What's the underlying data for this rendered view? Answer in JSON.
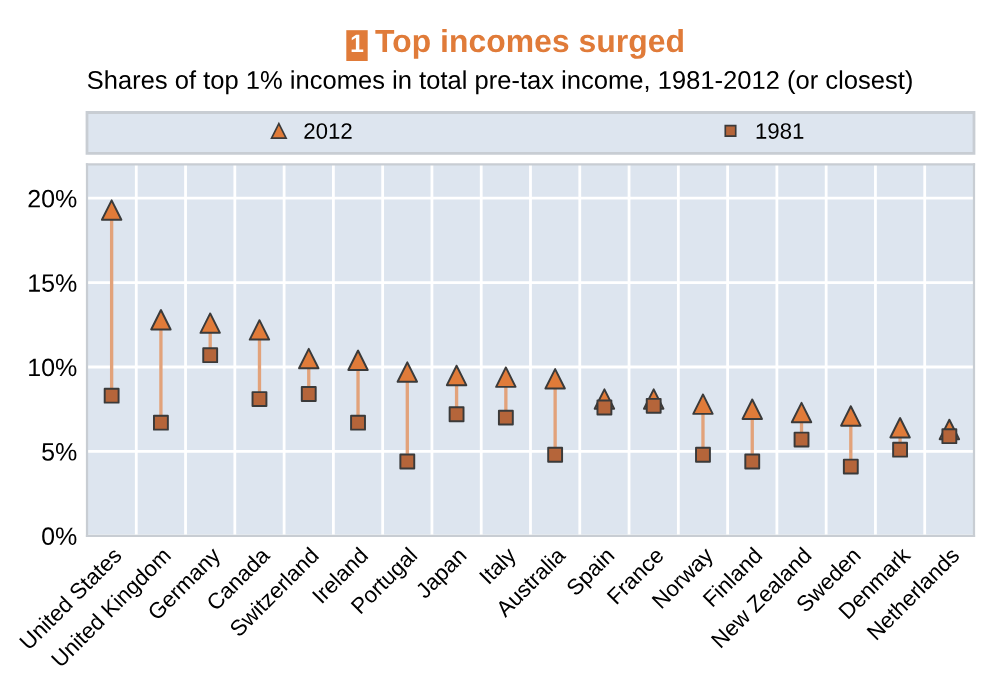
{
  "chart_data": {
    "type": "scatter",
    "title": "Top incomes surged",
    "subtitle": "Shares of top 1% incomes in total pre-tax income, 1981-2012 (or closest)",
    "annotations": [
      "1"
    ],
    "categories": [
      "United States",
      "United Kingdom",
      "Germany",
      "Canada",
      "Switzerland",
      "Ireland",
      "Portugal",
      "Japan",
      "Italy",
      "Australia",
      "Spain",
      "France",
      "Norway",
      "Finland",
      "New Zealand",
      "Sweden",
      "Denmark",
      "Netherlands"
    ],
    "series": [
      {
        "name": "2012",
        "color": "#e07b39",
        "marker": "triangle",
        "values": [
          19.3,
          12.8,
          12.6,
          12.2,
          10.5,
          10.4,
          9.7,
          9.5,
          9.4,
          9.3,
          8.1,
          8.1,
          7.8,
          7.5,
          7.3,
          7.1,
          6.4,
          6.3
        ]
      },
      {
        "name": "1981",
        "color": "#b5653a",
        "marker": "square",
        "values": [
          8.3,
          6.7,
          10.7,
          8.1,
          8.4,
          6.7,
          4.4,
          7.2,
          7.0,
          4.8,
          7.6,
          7.7,
          4.8,
          4.4,
          5.7,
          4.1,
          5.1,
          5.9
        ]
      }
    ],
    "ylim": [
      0,
      22
    ],
    "yticks": [
      {
        "value": 0,
        "label": "0%"
      },
      {
        "value": 5,
        "label": "5%"
      },
      {
        "value": 10,
        "label": "10%"
      },
      {
        "value": 15,
        "label": "15%"
      },
      {
        "value": 20,
        "label": "20%"
      }
    ],
    "grid": true,
    "legend": "top"
  }
}
